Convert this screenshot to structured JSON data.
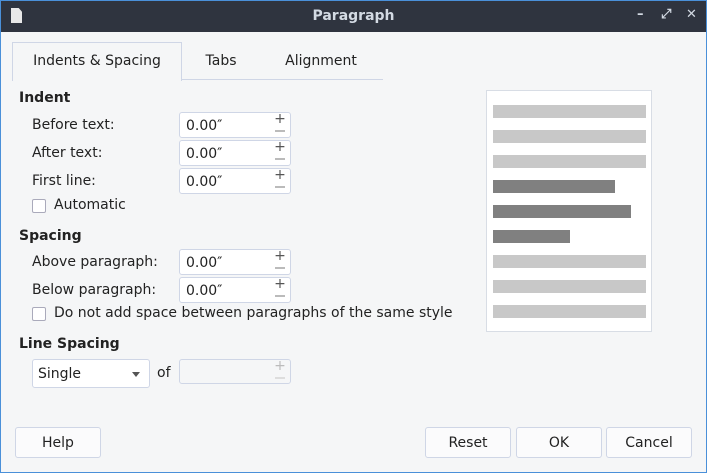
{
  "window": {
    "title": "Paragraph",
    "minimize": "–",
    "maximize": "⤢",
    "close": "✕"
  },
  "tabs": [
    {
      "label": "Indents & Spacing",
      "active": true
    },
    {
      "label": "Tabs"
    },
    {
      "label": "Alignment"
    }
  ],
  "indent": {
    "heading": "Indent",
    "before_text": {
      "label": "Before text:",
      "value": "0.00″"
    },
    "after_text": {
      "label": "After text:",
      "value": "0.00″"
    },
    "first_line": {
      "label": "First line:",
      "value": "0.00″"
    },
    "automatic": {
      "label": "Automatic",
      "checked": false
    }
  },
  "spacing": {
    "heading": "Spacing",
    "above": {
      "label": "Above paragraph:",
      "value": "0.00″"
    },
    "below": {
      "label": "Below paragraph:",
      "value": "0.00″"
    },
    "no_space": {
      "label": "Do not add space between paragraphs of the same style",
      "checked": false
    }
  },
  "line_spacing": {
    "heading": "Line Spacing",
    "selected": "Single",
    "of_label": "of",
    "of_value": ""
  },
  "preview": {
    "colors": {
      "context": "#c8c8c8",
      "current": "#808080"
    },
    "lines": [
      {
        "type": "context",
        "fill": 1
      },
      {
        "type": "context",
        "fill": 1
      },
      {
        "type": "context",
        "fill": 1
      },
      {
        "type": "current",
        "fill": 0.8
      },
      {
        "type": "current",
        "fill": 0.9
      },
      {
        "type": "current",
        "fill": 0.5
      },
      {
        "type": "context",
        "fill": 1
      },
      {
        "type": "context",
        "fill": 1
      },
      {
        "type": "context",
        "fill": 1
      }
    ]
  },
  "buttons": {
    "help": "Help",
    "reset": "Reset",
    "ok": "OK",
    "cancel": "Cancel"
  }
}
